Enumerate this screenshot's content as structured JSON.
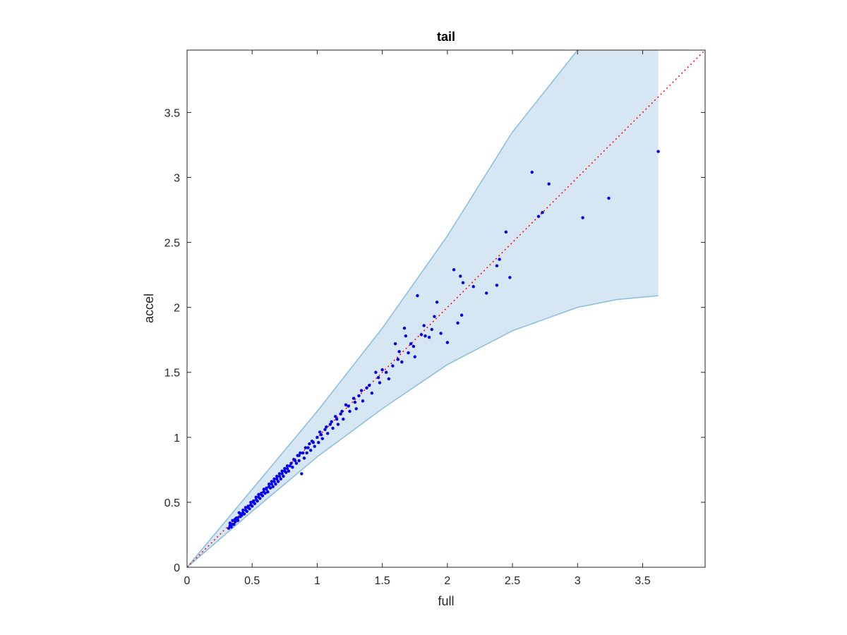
{
  "chart_data": {
    "type": "scatter",
    "title": "tail",
    "xlabel": "full",
    "ylabel": "accel",
    "xlim": [
      0,
      3.98
    ],
    "ylim": [
      0,
      3.98
    ],
    "xticks": [
      0,
      0.5,
      1,
      1.5,
      2,
      2.5,
      3,
      3.5
    ],
    "yticks": [
      0,
      0.5,
      1,
      1.5,
      2,
      2.5,
      3,
      3.5
    ],
    "xtick_labels": [
      "0",
      "0.5",
      "1",
      "1.5",
      "2",
      "2.5",
      "3",
      "3.5"
    ],
    "ytick_labels": [
      "0",
      "0.5",
      "1",
      "1.5",
      "2",
      "2.5",
      "3",
      "3.5"
    ],
    "grid": false,
    "colors": {
      "points": "#0000ee",
      "reference_line": "#ff0000",
      "band_fill": "#d6e6f2",
      "band_edge": "#89bde0",
      "axes": "#262626"
    },
    "reference_line": {
      "style": "dotted",
      "x": [
        0,
        3.98
      ],
      "y": [
        0,
        3.98
      ]
    },
    "band": {
      "x": [
        0,
        0.5,
        1,
        1.5,
        2,
        2.5,
        3,
        3.3,
        3.62
      ],
      "upper": [
        0,
        0.6,
        1.2,
        1.84,
        2.55,
        3.35,
        3.98,
        3.98,
        3.98
      ],
      "lower": [
        0,
        0.43,
        0.85,
        1.22,
        1.56,
        1.82,
        2.0,
        2.06,
        2.09
      ],
      "x_end": 3.62
    },
    "points": [
      [
        0.32,
        0.3
      ],
      [
        0.33,
        0.34
      ],
      [
        0.34,
        0.31
      ],
      [
        0.35,
        0.36
      ],
      [
        0.36,
        0.33
      ],
      [
        0.37,
        0.35
      ],
      [
        0.38,
        0.38
      ],
      [
        0.39,
        0.36
      ],
      [
        0.4,
        0.42
      ],
      [
        0.41,
        0.39
      ],
      [
        0.42,
        0.4
      ],
      [
        0.43,
        0.44
      ],
      [
        0.44,
        0.41
      ],
      [
        0.45,
        0.46
      ],
      [
        0.46,
        0.43
      ],
      [
        0.47,
        0.47
      ],
      [
        0.48,
        0.45
      ],
      [
        0.49,
        0.5
      ],
      [
        0.5,
        0.47
      ],
      [
        0.51,
        0.51
      ],
      [
        0.52,
        0.49
      ],
      [
        0.53,
        0.54
      ],
      [
        0.54,
        0.51
      ],
      [
        0.55,
        0.56
      ],
      [
        0.56,
        0.53
      ],
      [
        0.57,
        0.57
      ],
      [
        0.58,
        0.55
      ],
      [
        0.59,
        0.6
      ],
      [
        0.6,
        0.57
      ],
      [
        0.61,
        0.61
      ],
      [
        0.62,
        0.58
      ],
      [
        0.63,
        0.64
      ],
      [
        0.64,
        0.61
      ],
      [
        0.65,
        0.66
      ],
      [
        0.66,
        0.62
      ],
      [
        0.67,
        0.68
      ],
      [
        0.68,
        0.64
      ],
      [
        0.69,
        0.7
      ],
      [
        0.7,
        0.66
      ],
      [
        0.71,
        0.72
      ],
      [
        0.72,
        0.68
      ],
      [
        0.73,
        0.74
      ],
      [
        0.74,
        0.7
      ],
      [
        0.75,
        0.76
      ],
      [
        0.76,
        0.73
      ],
      [
        0.77,
        0.78
      ],
      [
        0.78,
        0.74
      ],
      [
        0.8,
        0.8
      ],
      [
        0.81,
        0.77
      ],
      [
        0.82,
        0.83
      ],
      [
        0.84,
        0.8
      ],
      [
        0.85,
        0.86
      ],
      [
        0.86,
        0.82
      ],
      [
        0.87,
        0.88
      ],
      [
        0.88,
        0.72
      ],
      [
        0.9,
        0.84
      ],
      [
        0.91,
        0.92
      ],
      [
        0.92,
        0.88
      ],
      [
        0.94,
        0.95
      ],
      [
        0.95,
        0.9
      ],
      [
        0.96,
        0.97
      ],
      [
        0.98,
        0.93
      ],
      [
        1.0,
        1.0
      ],
      [
        1.01,
        0.96
      ],
      [
        1.02,
        1.04
      ],
      [
        1.04,
        0.99
      ],
      [
        1.06,
        1.06
      ],
      [
        1.08,
        1.03
      ],
      [
        1.1,
        1.1
      ],
      [
        1.12,
        1.07
      ],
      [
        1.14,
        1.16
      ],
      [
        1.16,
        1.1
      ],
      [
        1.18,
        1.18
      ],
      [
        1.2,
        1.14
      ],
      [
        1.22,
        1.25
      ],
      [
        1.25,
        1.2
      ],
      [
        1.28,
        1.3
      ],
      [
        1.3,
        1.22
      ],
      [
        1.32,
        1.32
      ],
      [
        1.35,
        1.28
      ],
      [
        1.38,
        1.38
      ],
      [
        1.42,
        1.34
      ],
      [
        1.45,
        1.5
      ],
      [
        1.48,
        1.42
      ],
      [
        1.5,
        1.52
      ],
      [
        1.55,
        1.45
      ],
      [
        1.6,
        1.72
      ],
      [
        1.62,
        1.6
      ],
      [
        1.65,
        1.58
      ],
      [
        1.68,
        1.78
      ],
      [
        1.7,
        1.65
      ],
      [
        1.72,
        1.72
      ],
      [
        1.75,
        1.62
      ],
      [
        1.77,
        2.09
      ],
      [
        1.8,
        1.79
      ],
      [
        1.83,
        1.78
      ],
      [
        1.86,
        1.77
      ],
      [
        1.9,
        1.93
      ],
      [
        1.92,
        2.04
      ],
      [
        1.95,
        1.8
      ],
      [
        2.0,
        1.73
      ],
      [
        2.05,
        2.29
      ],
      [
        2.08,
        1.88
      ],
      [
        2.1,
        2.24
      ],
      [
        2.12,
        2.19
      ],
      [
        2.11,
        1.94
      ],
      [
        2.2,
        2.16
      ],
      [
        2.3,
        2.11
      ],
      [
        2.38,
        2.32
      ],
      [
        2.4,
        2.37
      ],
      [
        2.38,
        2.17
      ],
      [
        2.45,
        2.58
      ],
      [
        2.48,
        2.23
      ],
      [
        2.65,
        3.04
      ],
      [
        2.7,
        2.7
      ],
      [
        2.73,
        2.73
      ],
      [
        2.78,
        2.95
      ],
      [
        3.04,
        2.69
      ],
      [
        3.24,
        2.84
      ],
      [
        3.62,
        3.2
      ],
      [
        0.33,
        0.32
      ],
      [
        0.35,
        0.33
      ],
      [
        0.37,
        0.37
      ],
      [
        0.39,
        0.38
      ],
      [
        0.41,
        0.41
      ],
      [
        0.43,
        0.42
      ],
      [
        0.45,
        0.44
      ],
      [
        0.47,
        0.46
      ],
      [
        0.49,
        0.48
      ],
      [
        0.51,
        0.5
      ],
      [
        0.53,
        0.52
      ],
      [
        0.55,
        0.54
      ],
      [
        0.57,
        0.56
      ],
      [
        0.59,
        0.58
      ],
      [
        0.61,
        0.6
      ],
      [
        0.63,
        0.62
      ],
      [
        0.65,
        0.64
      ],
      [
        0.67,
        0.66
      ],
      [
        0.69,
        0.68
      ],
      [
        0.71,
        0.7
      ],
      [
        0.73,
        0.72
      ],
      [
        0.75,
        0.74
      ],
      [
        0.77,
        0.76
      ],
      [
        0.79,
        0.78
      ],
      [
        0.83,
        0.82
      ],
      [
        0.86,
        0.86
      ],
      [
        0.89,
        0.88
      ],
      [
        0.93,
        0.92
      ],
      [
        0.97,
        0.96
      ],
      [
        1.03,
        1.02
      ],
      [
        1.07,
        1.08
      ],
      [
        1.11,
        1.12
      ],
      [
        1.15,
        1.14
      ],
      [
        1.19,
        1.2
      ],
      [
        1.24,
        1.24
      ],
      [
        1.29,
        1.27
      ],
      [
        1.34,
        1.36
      ],
      [
        1.4,
        1.4
      ],
      [
        1.47,
        1.46
      ],
      [
        1.53,
        1.5
      ],
      [
        1.58,
        1.55
      ],
      [
        1.63,
        1.66
      ],
      [
        1.67,
        1.84
      ],
      [
        1.74,
        1.7
      ],
      [
        1.82,
        1.86
      ],
      [
        1.88,
        1.83
      ]
    ]
  }
}
